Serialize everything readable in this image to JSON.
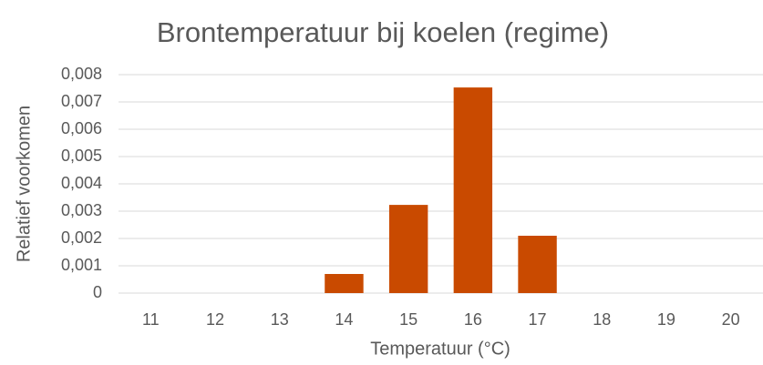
{
  "chart_data": {
    "type": "bar",
    "title": "Brontemperatuur bij koelen (regime)",
    "x_label": "Temperatuur (°C)",
    "y_label": "Relatief voorkomen",
    "categories": [
      "11",
      "12",
      "13",
      "14",
      "15",
      "16",
      "17",
      "18",
      "19",
      "20"
    ],
    "values": [
      0,
      0,
      0,
      0.0007,
      0.00323,
      0.00753,
      0.0021,
      0,
      0,
      0
    ],
    "color": "#c94a00",
    "ylim": [
      0,
      0.008
    ],
    "yticks": [
      0,
      {
        "value": 0.001,
        "label": "0,001"
      },
      {
        "value": 0.002,
        "label": "0,002"
      },
      {
        "value": 0.003,
        "label": "0,003"
      },
      {
        "value": 0.004,
        "label": "0,004"
      },
      {
        "value": 0.005,
        "label": "0,005"
      },
      {
        "value": 0.006,
        "label": "0,006"
      },
      {
        "value": 0.007,
        "label": "0,007"
      },
      {
        "value": 0.008,
        "label": "0,008"
      }
    ],
    "grid": true
  }
}
